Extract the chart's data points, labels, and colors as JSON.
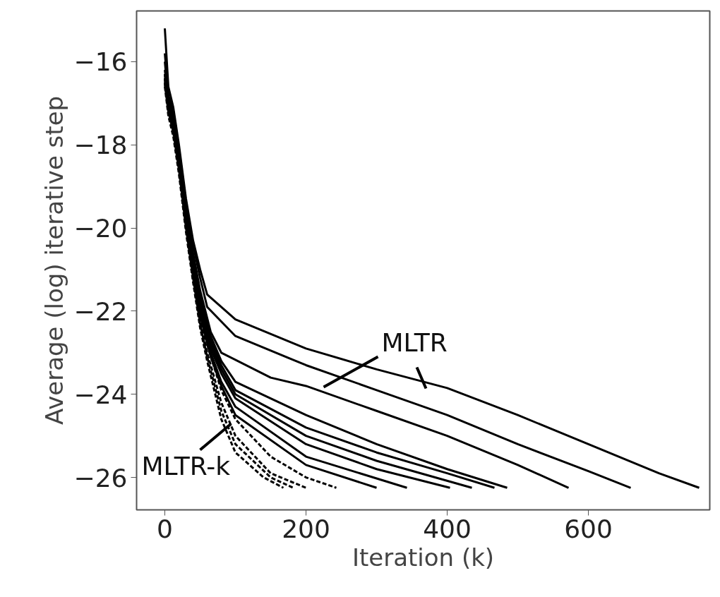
{
  "chart_data": {
    "type": "line",
    "xlabel": "Iteration (k)",
    "ylabel": "Average (log) iterative step",
    "xlim": [
      -40,
      772
    ],
    "ylim": [
      -26.78,
      -14.78
    ],
    "xticks": [
      0,
      200,
      400,
      600
    ],
    "yticks": [
      {
        "value": -16,
        "label": "−16"
      },
      {
        "value": -18,
        "label": "−18"
      },
      {
        "value": -20,
        "label": "−20"
      },
      {
        "value": -22,
        "label": "−22"
      },
      {
        "value": -24,
        "label": "−24"
      },
      {
        "value": -26,
        "label": "−26"
      }
    ],
    "grid": false,
    "marker": "none",
    "series": [
      {
        "color": "#000000",
        "line_style": "solid",
        "x": [
          0,
          5,
          12,
          20,
          30,
          40,
          50,
          60,
          100,
          200,
          300,
          400,
          500,
          600,
          700,
          757
        ],
        "values": [
          -15.2,
          -16.6,
          -17.1,
          -18.0,
          -19.3,
          -20.3,
          -21.0,
          -21.6,
          -22.2,
          -22.9,
          -23.4,
          -23.85,
          -24.5,
          -25.2,
          -25.9,
          -26.25
        ]
      },
      {
        "color": "#000000",
        "line_style": "solid",
        "x": [
          0,
          5,
          12,
          20,
          30,
          40,
          50,
          60,
          100,
          200,
          300,
          400,
          500,
          600,
          660
        ],
        "values": [
          -15.8,
          -16.8,
          -17.2,
          -18.1,
          -19.4,
          -20.4,
          -21.2,
          -21.9,
          -22.6,
          -23.3,
          -23.9,
          -24.5,
          -25.2,
          -25.85,
          -26.25
        ]
      },
      {
        "color": "#000000",
        "line_style": "solid",
        "x": [
          0,
          5,
          12,
          20,
          30,
          40,
          50,
          65,
          80,
          150,
          200,
          300,
          400,
          500,
          572
        ],
        "values": [
          -16.0,
          -16.9,
          -17.3,
          -18.2,
          -19.5,
          -20.6,
          -21.5,
          -22.5,
          -23.0,
          -23.6,
          -23.8,
          -24.4,
          -25.0,
          -25.7,
          -26.25
        ]
      },
      {
        "color": "#000000",
        "line_style": "solid",
        "x": [
          0,
          5,
          12,
          20,
          30,
          40,
          50,
          65,
          80,
          100,
          200,
          300,
          400,
          485
        ],
        "values": [
          -16.2,
          -16.9,
          -17.4,
          -18.3,
          -19.6,
          -20.7,
          -21.6,
          -22.6,
          -23.2,
          -23.7,
          -24.5,
          -25.2,
          -25.8,
          -26.25
        ]
      },
      {
        "color": "#000000",
        "line_style": "solid",
        "x": [
          0,
          5,
          12,
          20,
          30,
          40,
          50,
          65,
          80,
          100,
          200,
          300,
          400,
          467
        ],
        "values": [
          -16.3,
          -17.0,
          -17.4,
          -18.3,
          -19.7,
          -20.8,
          -21.7,
          -22.7,
          -23.3,
          -23.9,
          -24.8,
          -25.4,
          -25.9,
          -26.25
        ]
      },
      {
        "color": "#000000",
        "line_style": "solid",
        "x": [
          0,
          5,
          12,
          20,
          30,
          40,
          50,
          65,
          80,
          100,
          200,
          300,
          435
        ],
        "values": [
          -16.4,
          -17.0,
          -17.5,
          -18.4,
          -19.7,
          -20.8,
          -21.8,
          -22.8,
          -23.4,
          -24.0,
          -25.0,
          -25.6,
          -26.25
        ]
      },
      {
        "color": "#000000",
        "line_style": "solid",
        "x": [
          0,
          5,
          12,
          20,
          30,
          40,
          50,
          65,
          80,
          100,
          200,
          300,
          404
        ],
        "values": [
          -16.4,
          -17.1,
          -17.5,
          -18.4,
          -19.8,
          -20.9,
          -21.9,
          -22.9,
          -23.5,
          -24.1,
          -25.2,
          -25.8,
          -26.25
        ]
      },
      {
        "color": "#000000",
        "line_style": "solid",
        "x": [
          0,
          5,
          12,
          20,
          30,
          40,
          50,
          65,
          80,
          100,
          200,
          343
        ],
        "values": [
          -16.5,
          -17.1,
          -17.6,
          -18.5,
          -19.8,
          -21.0,
          -22.0,
          -23.0,
          -23.7,
          -24.3,
          -25.5,
          -26.25
        ]
      },
      {
        "color": "#000000",
        "line_style": "solid",
        "x": [
          0,
          5,
          12,
          20,
          30,
          40,
          50,
          65,
          80,
          100,
          200,
          300
        ],
        "values": [
          -16.5,
          -17.2,
          -17.6,
          -18.5,
          -19.9,
          -21.1,
          -22.1,
          -23.1,
          -23.8,
          -24.5,
          -25.7,
          -26.25
        ]
      },
      {
        "color": "#000000",
        "line_style": "dashed",
        "x": [
          0,
          5,
          12,
          20,
          30,
          40,
          50,
          60,
          80,
          100,
          150,
          200,
          243
        ],
        "values": [
          -16.3,
          -17.0,
          -17.5,
          -18.4,
          -19.8,
          -21.0,
          -22.0,
          -22.8,
          -23.9,
          -24.6,
          -25.5,
          -26.0,
          -26.25
        ]
      },
      {
        "color": "#000000",
        "line_style": "dashed",
        "x": [
          0,
          5,
          12,
          20,
          30,
          40,
          50,
          60,
          80,
          100,
          150,
          200
        ],
        "values": [
          -16.4,
          -17.1,
          -17.6,
          -18.5,
          -19.9,
          -21.1,
          -22.2,
          -23.0,
          -24.2,
          -25.0,
          -25.9,
          -26.25
        ]
      },
      {
        "color": "#000000",
        "line_style": "dashed",
        "x": [
          0,
          5,
          12,
          20,
          30,
          40,
          50,
          60,
          80,
          100,
          150,
          182
        ],
        "values": [
          -16.5,
          -17.2,
          -17.7,
          -18.6,
          -20.0,
          -21.2,
          -22.3,
          -23.1,
          -24.4,
          -25.2,
          -26.0,
          -26.25
        ]
      },
      {
        "color": "#000000",
        "line_style": "dashed",
        "x": [
          0,
          5,
          12,
          20,
          30,
          40,
          50,
          60,
          80,
          100,
          140,
          168
        ],
        "values": [
          -16.6,
          -17.3,
          -17.8,
          -18.7,
          -20.1,
          -21.3,
          -22.4,
          -23.2,
          -24.6,
          -25.4,
          -26.0,
          -26.25
        ]
      }
    ],
    "annotations": [
      "MLTR",
      "MLTR-k"
    ]
  }
}
